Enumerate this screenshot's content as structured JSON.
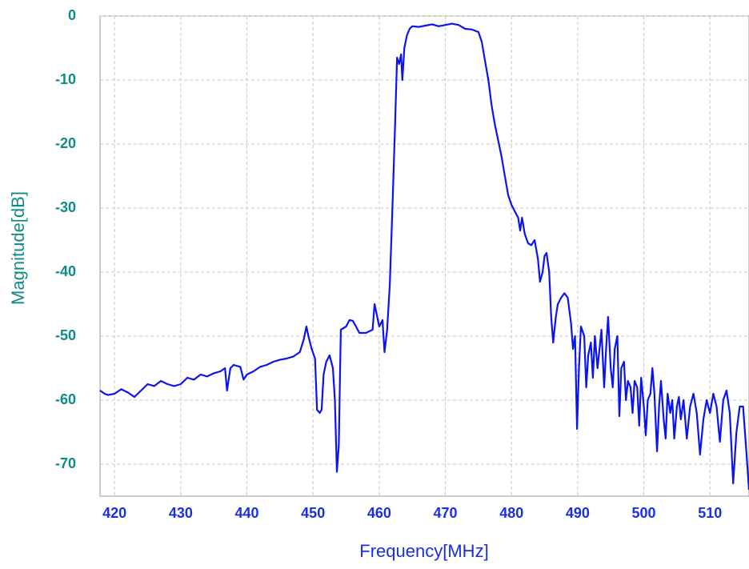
{
  "chart_data": {
    "type": "line",
    "xlabel": "Frequency[MHz]",
    "ylabel": "Magnitude[dB]",
    "x": [
      417.8,
      418.5,
      419,
      420,
      421,
      422,
      423,
      424,
      425,
      426,
      427,
      428,
      429,
      430,
      431,
      432,
      433,
      434,
      435,
      436,
      436.7,
      437,
      437.5,
      438,
      439,
      439.5,
      440,
      441,
      442,
      443,
      444,
      445,
      446,
      447,
      448,
      448.6,
      449,
      449.3,
      449.8,
      450.3,
      450.6,
      451,
      451.3,
      451.6,
      452,
      452.5,
      453,
      453.3,
      453.6,
      453.9,
      454.2,
      455,
      455.5,
      456,
      456.5,
      457,
      458,
      459,
      459.3,
      459.6,
      460,
      460.5,
      460.8,
      461.2,
      461.6,
      462,
      462.4,
      462.7,
      463,
      463.3,
      463.5,
      463.8,
      464.2,
      464.6,
      465,
      466,
      467,
      468,
      469,
      470,
      471,
      472,
      473,
      474,
      475,
      475.5,
      476,
      476.5,
      477,
      477.5,
      478,
      478.5,
      479,
      479.5,
      480,
      480.5,
      481,
      481.3,
      481.6,
      482,
      482.5,
      483,
      483.5,
      484,
      484.3,
      484.7,
      485,
      485.3,
      485.7,
      486,
      486.3,
      486.7,
      487,
      487.5,
      488,
      488.5,
      489,
      489.3,
      489.6,
      489.9,
      490.2,
      490.5,
      491,
      491.3,
      491.6,
      492,
      492.3,
      492.6,
      493,
      493.3,
      493.6,
      494,
      494.3,
      494.6,
      495,
      495.3,
      495.6,
      496,
      496.3,
      496.6,
      497,
      497.3,
      497.6,
      498,
      498.3,
      498.6,
      499,
      499.3,
      499.6,
      500,
      500.3,
      500.6,
      501,
      501.3,
      501.6,
      502,
      502.3,
      502.6,
      503,
      503.3,
      503.6,
      504,
      504.3,
      504.6,
      505,
      505.3,
      505.6,
      506,
      506.5,
      507,
      507.5,
      508,
      508.5,
      509,
      509.5,
      510,
      510.5,
      511,
      511.5,
      512,
      512.5,
      513,
      513.5,
      514,
      514.5,
      515,
      515.5,
      515.9
    ],
    "values": [
      -58.5,
      -59,
      -59.2,
      -59,
      -58.3,
      -58.8,
      -59.5,
      -58.5,
      -57.5,
      -57.8,
      -57,
      -57.5,
      -57.8,
      -57.5,
      -56.5,
      -56.8,
      -56,
      -56.3,
      -55.8,
      -55.5,
      -55,
      -58.5,
      -55,
      -54.5,
      -54.8,
      -56.8,
      -56,
      -55.5,
      -54.8,
      -54.5,
      -54,
      -53.7,
      -53.5,
      -53.2,
      -52.5,
      -50.5,
      -48.5,
      -50,
      -52,
      -53.5,
      -61.5,
      -62,
      -61.5,
      -56,
      -54,
      -53,
      -55,
      -60,
      -71.2,
      -67,
      -49,
      -48.5,
      -47.5,
      -47.6,
      -48.5,
      -49.5,
      -49.5,
      -49,
      -45,
      -46.5,
      -48.5,
      -47.5,
      -52.5,
      -49,
      -42,
      -30,
      -17,
      -6.5,
      -7.5,
      -6,
      -10,
      -5,
      -3,
      -2,
      -1.6,
      -1.7,
      -1.5,
      -1.3,
      -1.6,
      -1.4,
      -1.2,
      -1.4,
      -2,
      -2.1,
      -2.5,
      -4,
      -7,
      -10,
      -14,
      -17,
      -19.5,
      -22,
      -25,
      -28,
      -29.5,
      -30.5,
      -31.5,
      -33.5,
      -31.5,
      -34,
      -35.5,
      -35.8,
      -35,
      -38,
      -41.5,
      -40,
      -37.5,
      -37,
      -40,
      -47,
      -51,
      -47,
      -45,
      -44,
      -43.3,
      -44,
      -48,
      -52,
      -50,
      -64.5,
      -55,
      -48.5,
      -50,
      -58,
      -53,
      -51,
      -56.5,
      -50,
      -55,
      -52,
      -49,
      -58,
      -52,
      -47,
      -55,
      -58,
      -52,
      -50,
      -62.5,
      -55,
      -54,
      -60,
      -57,
      -58,
      -62,
      -57,
      -58,
      -64,
      -56.5,
      -61,
      -65.5,
      -60,
      -59,
      -55,
      -59,
      -68,
      -61,
      -57,
      -63,
      -66,
      -59,
      -62,
      -60,
      -66,
      -61,
      -59.5,
      -63,
      -60,
      -66,
      -61,
      -59,
      -62,
      -68.5,
      -63,
      -60,
      -62,
      -59,
      -61,
      -66.5,
      -60,
      -58.5,
      -62,
      -73,
      -65,
      -61,
      -61,
      -68,
      -74
    ],
    "color": "#0a14f0",
    "xlim": [
      417.8,
      515.9
    ],
    "xticks": [
      420,
      430,
      440,
      450,
      460,
      470,
      480,
      490,
      500,
      510
    ],
    "ylim": [
      -75,
      0
    ],
    "yticks": [
      0,
      -10,
      -20,
      -30,
      -40,
      -50,
      -60,
      -70
    ],
    "grid": true
  }
}
